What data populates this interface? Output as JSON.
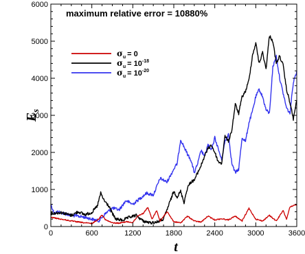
{
  "chart_data": {
    "type": "line",
    "annotation": "maximum relative error = 10880%",
    "xlabel": "t",
    "ylabel": "E",
    "ylabel_sub": "s",
    "xlim": [
      0,
      3600
    ],
    "ylim": [
      0,
      6000
    ],
    "xticks": [
      "0",
      "600",
      "1200",
      "1800",
      "2400",
      "3000",
      "3600"
    ],
    "yticks": [
      "0",
      "1000",
      "2000",
      "3000",
      "4000",
      "5000",
      "6000"
    ],
    "grid": false,
    "legend": {
      "position": "upper-left",
      "symbol": "σ",
      "subscript": "u",
      "entries": [
        {
          "value": "= 0",
          "exponent": ""
        },
        {
          "value": "= 10",
          "exponent": "-18"
        },
        {
          "value": "= 10",
          "exponent": "-20"
        }
      ]
    },
    "series": [
      {
        "color": "#cc0000",
        "x": [
          0,
          150,
          300,
          450,
          600,
          700,
          750,
          800,
          900,
          1000,
          1100,
          1200,
          1280,
          1350,
          1420,
          1480,
          1550,
          1600,
          1700,
          1800,
          1900,
          2000,
          2100,
          2200,
          2300,
          2400,
          2500,
          2600,
          2700,
          2800,
          2900,
          3000,
          3100,
          3200,
          3300,
          3400,
          3450,
          3500,
          3600
        ],
        "y": [
          250,
          200,
          150,
          110,
          80,
          200,
          320,
          180,
          100,
          90,
          130,
          110,
          300,
          350,
          520,
          200,
          430,
          150,
          400,
          130,
          100,
          280,
          150,
          120,
          280,
          180,
          210,
          180,
          280,
          150,
          490,
          200,
          150,
          300,
          150,
          430,
          200,
          520,
          600
        ]
      },
      {
        "color": "#000000",
        "x": [
          0,
          150,
          300,
          400,
          500,
          600,
          680,
          730,
          780,
          850,
          900,
          950,
          1050,
          1150,
          1250,
          1350,
          1450,
          1550,
          1650,
          1700,
          1750,
          1800,
          1850,
          1900,
          1950,
          2000,
          2050,
          2100,
          2150,
          2200,
          2250,
          2300,
          2350,
          2400,
          2450,
          2500,
          2550,
          2600,
          2650,
          2700,
          2750,
          2800,
          2850,
          2900,
          2950,
          3000,
          3050,
          3100,
          3150,
          3200,
          3250,
          3300,
          3350,
          3400,
          3450,
          3500,
          3550,
          3600
        ],
        "y": [
          350,
          380,
          300,
          400,
          320,
          380,
          550,
          900,
          700,
          550,
          350,
          200,
          170,
          250,
          300,
          150,
          100,
          120,
          200,
          450,
          700,
          950,
          800,
          950,
          650,
          1050,
          1200,
          1250,
          1450,
          1650,
          1900,
          2100,
          2200,
          2000,
          1750,
          1700,
          2450,
          2300,
          2600,
          3300,
          3050,
          3500,
          3650,
          3950,
          4600,
          4950,
          4400,
          4700,
          4250,
          5150,
          5000,
          4400,
          4600,
          4350,
          3700,
          3350,
          2900,
          3400
        ]
      },
      {
        "color": "#3333ee",
        "x": [
          0,
          50,
          100,
          200,
          300,
          400,
          500,
          600,
          700,
          800,
          900,
          1000,
          1100,
          1200,
          1300,
          1400,
          1500,
          1600,
          1700,
          1800,
          1850,
          1900,
          2000,
          2050,
          2100,
          2150,
          2200,
          2250,
          2300,
          2350,
          2400,
          2450,
          2500,
          2550,
          2600,
          2650,
          2700,
          2750,
          2800,
          2850,
          2900,
          2950,
          3000,
          3050,
          3100,
          3150,
          3200,
          3250,
          3300,
          3350,
          3400,
          3450,
          3500,
          3550,
          3600
        ],
        "y": [
          600,
          350,
          400,
          350,
          300,
          280,
          250,
          200,
          150,
          350,
          500,
          450,
          700,
          600,
          750,
          900,
          850,
          1300,
          1200,
          1550,
          1700,
          2350,
          1950,
          1800,
          1450,
          1700,
          2050,
          1900,
          2200,
          2050,
          2400,
          2100,
          1800,
          2300,
          2500,
          1700,
          1450,
          1550,
          2400,
          2300,
          2800,
          3100,
          3500,
          3700,
          3500,
          3150,
          3050,
          4300,
          4600,
          4000,
          3600,
          3200,
          3050,
          3900,
          4200
        ]
      }
    ]
  }
}
